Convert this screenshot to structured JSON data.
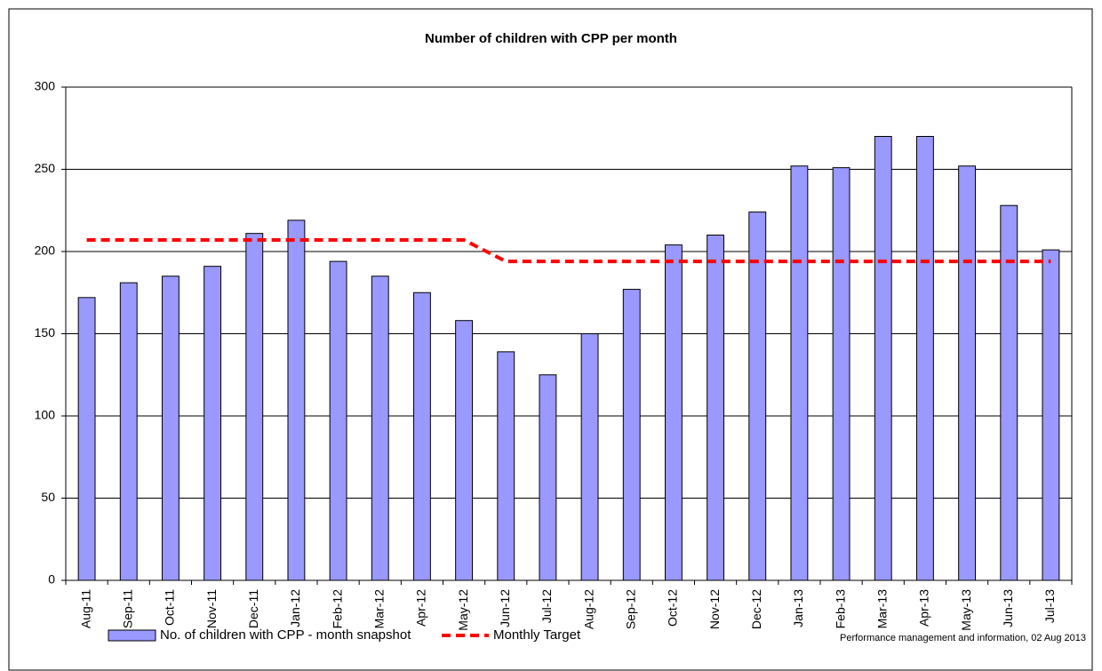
{
  "chart_data": {
    "type": "bar",
    "title": "Number of children with CPP per month",
    "categories": [
      "Aug-11",
      "Sep-11",
      "Oct-11",
      "Nov-11",
      "Dec-11",
      "Jan-12",
      "Feb-12",
      "Mar-12",
      "Apr-12",
      "May-12",
      "Jun-12",
      "Jul-12",
      "Aug-12",
      "Sep-12",
      "Oct-12",
      "Nov-12",
      "Dec-12",
      "Jan-13",
      "Feb-13",
      "Mar-13",
      "Apr-13",
      "May-13",
      "Jun-13",
      "Jul-13"
    ],
    "series": [
      {
        "name": "No. of children with CPP - month snapshot",
        "type": "bar",
        "color": "#9999ff",
        "values": [
          172,
          181,
          185,
          191,
          211,
          219,
          194,
          185,
          175,
          158,
          139,
          125,
          150,
          177,
          204,
          210,
          224,
          252,
          251,
          270,
          270,
          252,
          228,
          201
        ]
      },
      {
        "name": "Monthly Target",
        "type": "line",
        "color": "#ff0000",
        "values": [
          207,
          207,
          207,
          207,
          207,
          207,
          207,
          207,
          207,
          207,
          194,
          194,
          194,
          194,
          194,
          194,
          194,
          194,
          194,
          194,
          194,
          194,
          194,
          194
        ]
      }
    ],
    "ylim": [
      0,
      300
    ],
    "yticks": [
      0,
      50,
      100,
      150,
      200,
      250,
      300
    ],
    "grid": true,
    "legend": "bottom",
    "footnote": "Performance management and information, 02 Aug 2013"
  }
}
